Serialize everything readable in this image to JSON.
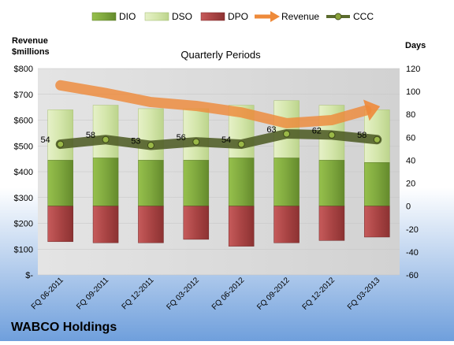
{
  "company": "WABCO Holdings",
  "colors": {
    "dio": "#7ea63c",
    "dso": "#d7e8b0",
    "dpo": "#b04a4a",
    "revenue": "#ee8a3a",
    "ccc": "#5b6b2e"
  },
  "chart_data": {
    "type": "bar",
    "title": "Quarterly Periods",
    "left_axis_label": "Revenue\n$millions",
    "right_axis_label": "Days",
    "categories": [
      "FQ 06-2011",
      "FQ 09-2011",
      "FQ 12-2011",
      "FQ 03-2012",
      "FQ 06-2012",
      "FQ 09-2012",
      "FQ 12-2012",
      "FQ 03-2013"
    ],
    "left_ylim": [
      0,
      800
    ],
    "left_ticks": [
      "$-",
      "$100",
      "$200",
      "$300",
      "$400",
      "$500",
      "$600",
      "$700",
      "$800"
    ],
    "right_ylim": [
      -60,
      120
    ],
    "right_ticks": [
      "-60",
      "-40",
      "-20",
      "0",
      "20",
      "40",
      "60",
      "80",
      "100",
      "120"
    ],
    "series": [
      {
        "name": "DIO",
        "type": "stacked-bar",
        "axis": "days",
        "values": [
          40,
          42,
          40,
          40,
          42,
          42,
          40,
          38
        ]
      },
      {
        "name": "DSO",
        "type": "stacked-bar",
        "axis": "days",
        "values": [
          44,
          46,
          45,
          45,
          46,
          50,
          48,
          46
        ]
      },
      {
        "name": "DPO",
        "type": "stacked-bar-negative",
        "axis": "days",
        "values": [
          -31,
          -32,
          -32,
          -29,
          -35,
          -32,
          -30,
          -27
        ]
      },
      {
        "name": "Revenue",
        "type": "line",
        "axis": "revenue",
        "values": [
          735,
          705,
          670,
          655,
          630,
          588,
          600,
          650
        ]
      },
      {
        "name": "CCC",
        "type": "line",
        "axis": "days",
        "values": [
          54,
          58,
          53,
          56,
          54,
          63,
          62,
          58
        ],
        "labels": [
          "54",
          "58",
          "53",
          "56",
          "54",
          "63",
          "62",
          "58"
        ]
      }
    ],
    "legend_position": "top"
  }
}
